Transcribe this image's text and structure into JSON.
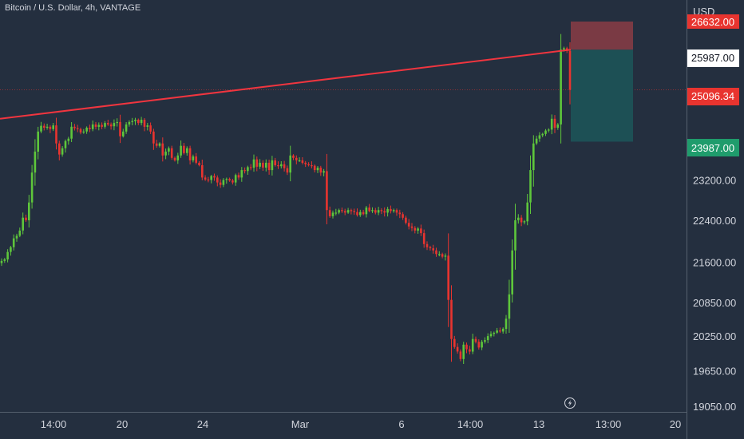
{
  "header": {
    "symbol_title": "Bitcoin / U.S. Dollar, 4h, VANTAGE"
  },
  "price_axis": {
    "currency": "USD",
    "tick_labels": [
      "23200.00",
      "22400.00",
      "21600.00",
      "20850.00",
      "20250.00",
      "19650.00",
      "19050.00"
    ]
  },
  "price_tags": {
    "stop_loss": "26632.00",
    "entry": "25987.00",
    "current": "25096.34",
    "target": "23987.00"
  },
  "time_axis": {
    "labels": [
      "14:00",
      "20",
      "24",
      "Mar",
      "6",
      "14:00",
      "13",
      "13:00",
      "20"
    ]
  },
  "colors": {
    "background": "#242f3f",
    "up": "#5ec63b",
    "down": "#e8342f",
    "trendline": "#f0353f",
    "loss_zone": "#7a3a44",
    "profit_zone": "#1d5055",
    "text": "#d1d4dc",
    "axis_border": "#55606e"
  },
  "icons": {
    "time_axis_marker": "lightning-icon"
  },
  "chart_data": {
    "type": "candlestick",
    "symbol": "Bitcoin / U.S. Dollar",
    "timeframe": "4h",
    "source": "VANTAGE",
    "ylim": [
      19050,
      26632
    ],
    "yscale": "log",
    "x_tick_labels": [
      "14:00",
      "20",
      "24",
      "Mar",
      "6",
      "14:00",
      "13",
      "13:00",
      "20"
    ],
    "y_tick_labels": [
      23200,
      22400,
      21600,
      20850,
      20250,
      19650,
      19050
    ],
    "last_price": 25096.34,
    "trendline": {
      "start_price": 24470,
      "end_price": 25987
    },
    "position": {
      "side": "short",
      "entry": 25987.0,
      "stop_loss": 26632.0,
      "target": 23987.0
    },
    "closes": [
      21620,
      21650,
      21790,
      21880,
      22050,
      22100,
      22200,
      22450,
      22400,
      22750,
      23350,
      23780,
      24200,
      24320,
      24280,
      24300,
      24250,
      24330,
      23950,
      23720,
      23850,
      24000,
      24050,
      24300,
      24270,
      24250,
      24180,
      24200,
      24280,
      24250,
      24350,
      24300,
      24340,
      24300,
      24380,
      24350,
      24310,
      24380,
      24400,
      24100,
      24200,
      24350,
      24400,
      24420,
      24450,
      24380,
      24450,
      24300,
      24330,
      24200,
      23950,
      23900,
      23950,
      23700,
      23780,
      23850,
      23650,
      23600,
      23700,
      23900,
      23750,
      23850,
      23600,
      23680,
      23550,
      23500,
      23250,
      23210,
      23200,
      23280,
      23250,
      23150,
      23100,
      23200,
      23220,
      23190,
      23150,
      23300,
      23250,
      23400,
      23380,
      23460,
      23450,
      23620,
      23470,
      23550,
      23450,
      23550,
      23400,
      23600,
      23500,
      23480,
      23520,
      23440,
      23350,
      23700,
      23650,
      23600,
      23600,
      23550,
      23520,
      23500,
      23490,
      23400,
      23450,
      23350,
      23380,
      22600,
      22480,
      22550,
      22550,
      22600,
      22580,
      22550,
      22600,
      22580,
      22560,
      22500,
      22560,
      22520,
      22650,
      22580,
      22600,
      22550,
      22600,
      22580,
      22550,
      22620,
      22580,
      22600,
      22550,
      22520,
      22450,
      22350,
      22280,
      22250,
      22200,
      22240,
      22150,
      21940,
      21880,
      21860,
      21820,
      21750,
      21750,
      21700,
      21720,
      20900,
      20200,
      20060,
      19980,
      19850,
      20100,
      20020,
      19980,
      20200,
      20150,
      20050,
      20150,
      20180,
      20250,
      20290,
      20310,
      20350,
      20330,
      20380,
      20560,
      21000,
      21820,
      22400,
      22450,
      22360,
      22380,
      22750,
      23400,
      23950,
      24050,
      24120,
      24150,
      24220,
      24240,
      24470,
      24280,
      24350,
      25990,
      26020,
      25960,
      25096.34
    ]
  }
}
